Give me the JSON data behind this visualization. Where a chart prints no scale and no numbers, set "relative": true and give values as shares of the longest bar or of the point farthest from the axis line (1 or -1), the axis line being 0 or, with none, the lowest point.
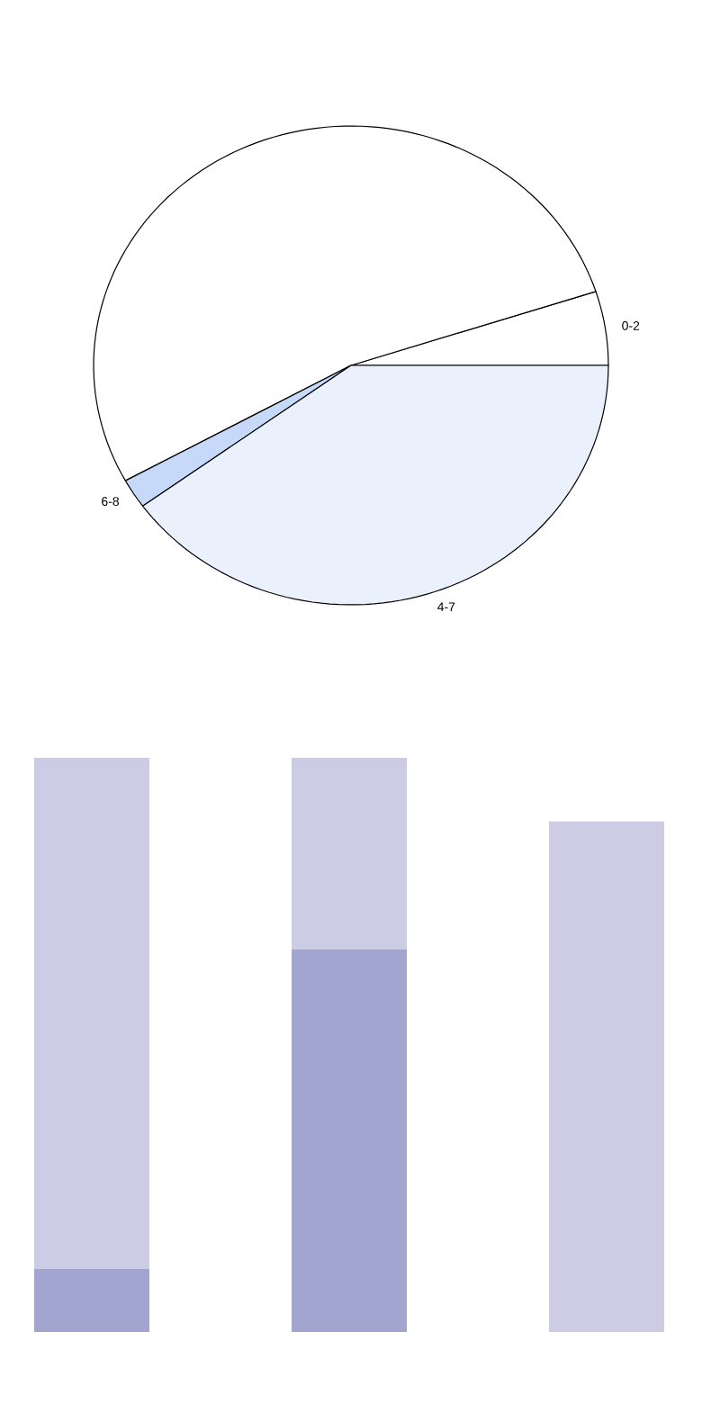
{
  "chart_data": [
    {
      "type": "pie",
      "categories": [
        "0-2",
        null,
        "6-8",
        "4-7"
      ],
      "values": [
        5,
        53,
        2,
        40
      ],
      "colors": [
        "#ffffff",
        "#ffffff",
        "#c6d9f8",
        "#eaf1fd"
      ]
    },
    {
      "type": "bar",
      "relative": true,
      "stacked": true,
      "categories": [
        null,
        null,
        null
      ],
      "series": [
        {
          "color": "#a3a5d1",
          "values": [
            0.11,
            0.666,
            0
          ]
        },
        {
          "color": "#cccde5",
          "values": [
            0.89,
            0.334,
            0.889
          ]
        }
      ]
    }
  ]
}
